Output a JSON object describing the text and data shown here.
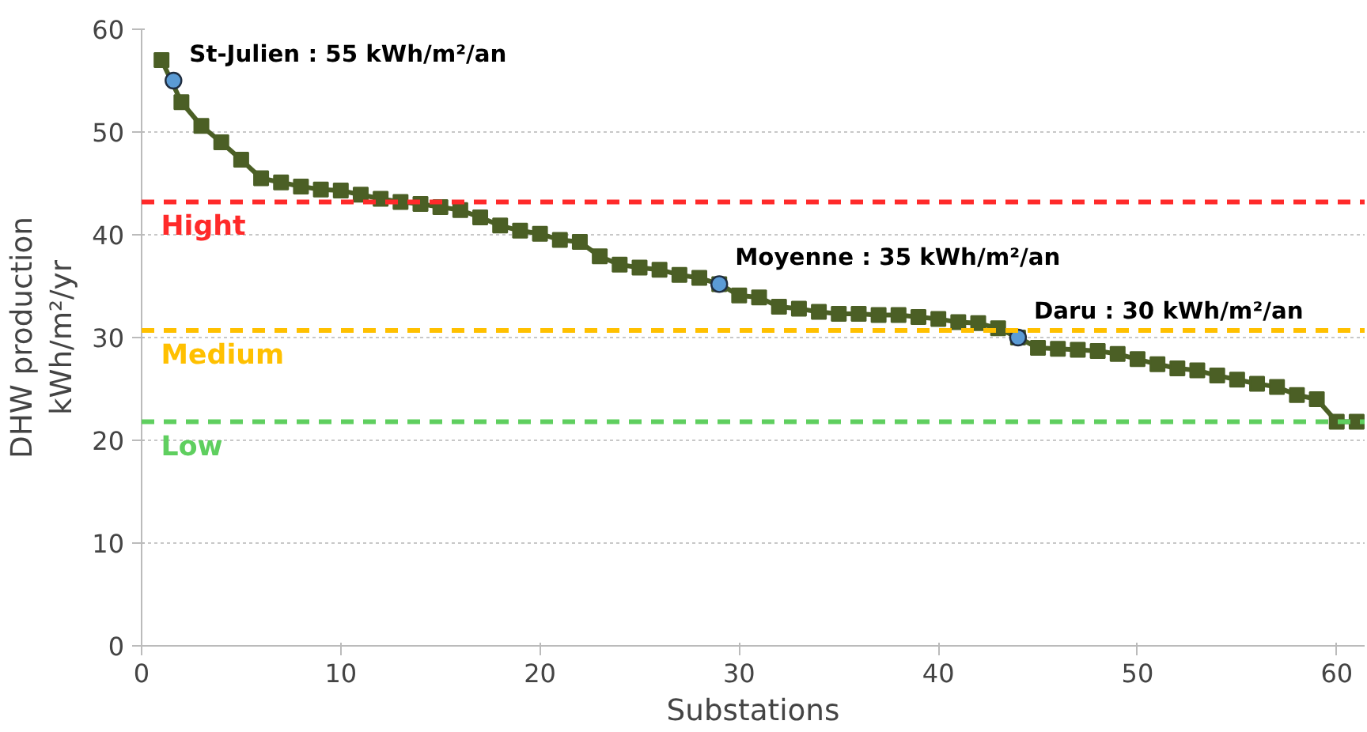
{
  "chart_data": {
    "type": "line",
    "xlabel": "Substations",
    "ylabel": "DHW production\nkWh/m²/yr",
    "xlim": [
      0,
      61.4
    ],
    "ylim": [
      0,
      60
    ],
    "xticks": [
      0,
      10,
      20,
      30,
      40,
      50,
      60
    ],
    "yticks": [
      0,
      10,
      20,
      30,
      40,
      50,
      60
    ],
    "grid": "y",
    "series": [
      {
        "color": "#4b5f25",
        "marker": "square",
        "x": [
          1,
          2,
          3,
          4,
          5,
          6,
          7,
          8,
          9,
          10,
          11,
          12,
          13,
          14,
          15,
          16,
          17,
          18,
          19,
          20,
          21,
          22,
          23,
          24,
          25,
          26,
          27,
          28,
          29,
          30,
          31,
          32,
          33,
          34,
          35,
          36,
          37,
          38,
          39,
          40,
          41,
          42,
          43,
          44,
          45,
          46,
          47,
          48,
          49,
          50,
          51,
          52,
          53,
          54,
          55,
          56,
          57,
          58,
          59,
          60,
          61
        ],
        "values": [
          57.0,
          52.9,
          50.6,
          49.0,
          47.3,
          45.5,
          45.1,
          44.7,
          44.4,
          44.3,
          43.9,
          43.5,
          43.2,
          43.0,
          42.7,
          42.4,
          41.7,
          40.9,
          40.4,
          40.1,
          39.5,
          39.3,
          37.9,
          37.1,
          36.8,
          36.6,
          36.1,
          35.8,
          35.2,
          34.1,
          33.9,
          33.0,
          32.8,
          32.5,
          32.3,
          32.3,
          32.2,
          32.2,
          32.0,
          31.8,
          31.5,
          31.4,
          30.9,
          30.0,
          29.0,
          28.9,
          28.8,
          28.7,
          28.4,
          27.9,
          27.4,
          27.0,
          26.8,
          26.3,
          25.9,
          25.5,
          25.2,
          24.4,
          24.0,
          21.8,
          21.8
        ]
      },
      {
        "type": "scatter",
        "color": "#5b9bd5",
        "marker": "circle",
        "x": [
          1.6,
          29,
          44
        ],
        "values": [
          55,
          35.2,
          30
        ]
      }
    ],
    "ref_lines": [
      {
        "axis": "y",
        "value": 43.2,
        "label": "Hight",
        "color": "#ff2a2a",
        "line_style": "dashed"
      },
      {
        "axis": "y",
        "value": 30.7,
        "label": "Medium",
        "color": "#ffc000",
        "line_style": "dashed"
      },
      {
        "axis": "y",
        "value": 21.8,
        "label": "Low",
        "color": "#5fcf5f",
        "line_style": "dashed"
      }
    ],
    "annotations": [
      {
        "text": "St-Julien : 55 kWh/m²/an",
        "x": 1.6,
        "y": 55
      },
      {
        "text": "Moyenne : 35 kWh/m²/an",
        "x": 29,
        "y": 35.2
      },
      {
        "text": "Daru : 30 kWh/m²/an",
        "x": 44,
        "y": 30
      }
    ]
  }
}
